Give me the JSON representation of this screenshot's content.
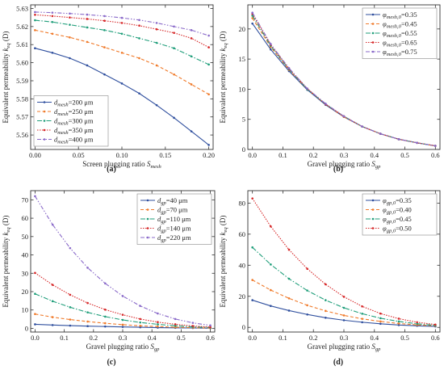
{
  "chart_data": [
    {
      "type": "line",
      "panel_label": "(a)",
      "xlabel": "Screen plugging ratio S_mesh",
      "ylabel": "Equivalent permeability k_eq (D)",
      "xlim": [
        -0.005,
        0.205
      ],
      "ylim": [
        5.552,
        5.632
      ],
      "xticks": [
        0.0,
        0.05,
        0.1,
        0.15,
        0.2
      ],
      "yticks": [
        5.56,
        5.57,
        5.58,
        5.59,
        5.6,
        5.61,
        5.62,
        5.63
      ],
      "xdec": 2,
      "ydec": 2,
      "legend_pos": "bottom-left",
      "grid": false,
      "x": [
        0,
        0.02,
        0.04,
        0.06,
        0.08,
        0.1,
        0.12,
        0.14,
        0.16,
        0.18,
        0.2
      ],
      "series": [
        {
          "name": "d_mesh=200 μm",
          "color": "#2f4f9e",
          "dash": "",
          "values": [
            5.608,
            5.6055,
            5.6025,
            5.5985,
            5.5935,
            5.5885,
            5.583,
            5.5765,
            5.5695,
            5.562,
            5.5545
          ]
        },
        {
          "name": "d_mesh=250 μm",
          "color": "#f07a2a",
          "dash": "4,2.5",
          "values": [
            5.618,
            5.616,
            5.614,
            5.6115,
            5.6085,
            5.6055,
            5.6025,
            5.5985,
            5.5935,
            5.588,
            5.5825
          ]
        },
        {
          "name": "d_mesh=300 μm",
          "color": "#1f9e7a",
          "dash": "6,2,1.5,2",
          "values": [
            5.6235,
            5.6225,
            5.621,
            5.6195,
            5.618,
            5.616,
            5.6135,
            5.611,
            5.608,
            5.6035,
            5.599
          ]
        },
        {
          "name": "d_mesh=350 μm",
          "color": "#d62728",
          "dash": "1.5,1.5",
          "values": [
            5.6265,
            5.6258,
            5.625,
            5.6242,
            5.6232,
            5.622,
            5.6205,
            5.6185,
            5.6165,
            5.6135,
            5.6085
          ]
        },
        {
          "name": "d_mesh=400 μm",
          "color": "#8a6ac9",
          "dash": "5,2,1.5,2,1.5,2",
          "values": [
            5.628,
            5.6277,
            5.6272,
            5.6266,
            5.6258,
            5.6248,
            5.6236,
            5.622,
            5.62,
            5.618,
            5.615
          ]
        }
      ]
    },
    {
      "type": "line",
      "panel_label": "(b)",
      "xlabel": "Gravel plugging ratio S_gp",
      "ylabel": "Equivalent permeability k_eq (D)",
      "xlim": [
        -0.015,
        0.615
      ],
      "ylim": [
        0,
        24
      ],
      "xticks": [
        0.0,
        0.1,
        0.2,
        0.3,
        0.4,
        0.5,
        0.6
      ],
      "yticks": [
        0,
        5,
        10,
        15,
        20
      ],
      "xdec": 1,
      "ydec": 0,
      "legend_pos": "top-right",
      "grid": false,
      "x": [
        0,
        0.06,
        0.12,
        0.18,
        0.24,
        0.3,
        0.36,
        0.42,
        0.48,
        0.54,
        0.6
      ],
      "series": [
        {
          "name": "φ_mesh,0=0.35",
          "color": "#2f4f9e",
          "dash": "",
          "values": [
            20.9,
            16.6,
            13.0,
            9.9,
            7.4,
            5.4,
            3.8,
            2.6,
            1.7,
            1.1,
            0.6
          ]
        },
        {
          "name": "φ_mesh,0=0.45",
          "color": "#f07a2a",
          "dash": "4,2.5",
          "values": [
            21.8,
            17.0,
            13.2,
            10.0,
            7.5,
            5.4,
            3.8,
            2.6,
            1.7,
            1.1,
            0.6
          ]
        },
        {
          "name": "φ_mesh,0=0.55",
          "color": "#1f9e7a",
          "dash": "6,2,1.5,2",
          "values": [
            22.2,
            17.2,
            13.3,
            10.0,
            7.5,
            5.5,
            3.8,
            2.6,
            1.7,
            1.1,
            0.6
          ]
        },
        {
          "name": "φ_mesh,0=0.65",
          "color": "#d62728",
          "dash": "1.5,1.5",
          "values": [
            22.5,
            17.4,
            13.4,
            10.1,
            7.5,
            5.5,
            3.8,
            2.6,
            1.7,
            1.1,
            0.6
          ]
        },
        {
          "name": "φ_mesh,0=0.75",
          "color": "#8a6ac9",
          "dash": "5,2,1.5,2,1.5,2",
          "values": [
            22.7,
            17.5,
            13.5,
            10.1,
            7.6,
            5.5,
            3.8,
            2.6,
            1.7,
            1.1,
            0.6
          ]
        }
      ]
    },
    {
      "type": "line",
      "panel_label": "(c)",
      "xlabel": "Gravel plugging ratio S_gp",
      "ylabel": "Equivalent permeability k_eq (D)",
      "xlim": [
        -0.015,
        0.615
      ],
      "ylim": [
        -2,
        75
      ],
      "xticks": [
        0.0,
        0.1,
        0.2,
        0.3,
        0.4,
        0.5,
        0.6
      ],
      "yticks": [
        0,
        10,
        20,
        30,
        40,
        50,
        60,
        70
      ],
      "xdec": 1,
      "ydec": 0,
      "legend_pos": "top-right",
      "grid": false,
      "x": [
        0,
        0.06,
        0.12,
        0.18,
        0.24,
        0.3,
        0.36,
        0.42,
        0.48,
        0.54,
        0.6
      ],
      "series": [
        {
          "name": "d_gp=40 μm",
          "color": "#2f4f9e",
          "dash": "",
          "values": [
            2.2,
            1.8,
            1.5,
            1.2,
            1.0,
            0.8,
            0.6,
            0.4,
            0.3,
            0.2,
            0.1
          ]
        },
        {
          "name": "d_gp=70 μm",
          "color": "#f07a2a",
          "dash": "4,2.5",
          "values": [
            7.8,
            6.1,
            4.8,
            3.7,
            2.8,
            2.0,
            1.4,
            1.0,
            0.6,
            0.4,
            0.2
          ]
        },
        {
          "name": "d_gp=110 μm",
          "color": "#1f9e7a",
          "dash": "6,2,1.5,2",
          "values": [
            18.8,
            14.8,
            11.5,
            8.7,
            6.4,
            4.6,
            3.2,
            2.2,
            1.4,
            0.8,
            0.5
          ]
        },
        {
          "name": "d_gp=140 μm",
          "color": "#d62728",
          "dash": "1.5,1.5",
          "values": [
            30.2,
            23.7,
            18.3,
            13.8,
            10.2,
            7.4,
            5.1,
            3.4,
            2.2,
            1.3,
            0.7
          ]
        },
        {
          "name": "d_gp=220 μm",
          "color": "#8a6ac9",
          "dash": "5,2,1.5,2,1.5,2",
          "values": [
            72.0,
            56.5,
            43.7,
            33.0,
            24.5,
            17.6,
            12.2,
            8.1,
            5.1,
            3.0,
            1.6
          ]
        }
      ]
    },
    {
      "type": "line",
      "panel_label": "(d)",
      "xlabel": "Gravel plugging ratio S_gp",
      "ylabel": "Equivalent permeability k_eq (D)",
      "xlim": [
        -0.015,
        0.615
      ],
      "ylim": [
        -3,
        88
      ],
      "xticks": [
        0.0,
        0.1,
        0.2,
        0.3,
        0.4,
        0.5,
        0.6
      ],
      "yticks": [
        0,
        20,
        40,
        60,
        80
      ],
      "xdec": 1,
      "ydec": 0,
      "legend_pos": "top-right",
      "grid": false,
      "x": [
        0,
        0.06,
        0.12,
        0.18,
        0.24,
        0.3,
        0.36,
        0.42,
        0.48,
        0.54,
        0.6
      ],
      "series": [
        {
          "name": "φ_gp,0=0.35",
          "color": "#2f4f9e",
          "dash": "",
          "values": [
            17.5,
            13.8,
            10.8,
            8.3,
            6.2,
            4.6,
            3.3,
            2.3,
            1.5,
            1.0,
            0.6
          ]
        },
        {
          "name": "φ_gp,0=0.40",
          "color": "#f07a2a",
          "dash": "4,2.5",
          "values": [
            30.5,
            24.0,
            18.7,
            14.2,
            10.6,
            7.7,
            5.5,
            3.8,
            2.5,
            1.6,
            1.0
          ]
        },
        {
          "name": "φ_gp,0=0.45",
          "color": "#1f9e7a",
          "dash": "6,2,1.5,2",
          "values": [
            51.5,
            40.5,
            31.3,
            23.7,
            17.5,
            12.6,
            8.8,
            5.9,
            3.8,
            2.3,
            1.3
          ]
        },
        {
          "name": "φ_gp,0=0.50",
          "color": "#d62728",
          "dash": "1.5,1.5",
          "values": [
            83.0,
            65.0,
            50.0,
            37.7,
            27.7,
            19.7,
            13.5,
            8.9,
            5.6,
            3.3,
            1.8
          ]
        }
      ]
    }
  ]
}
